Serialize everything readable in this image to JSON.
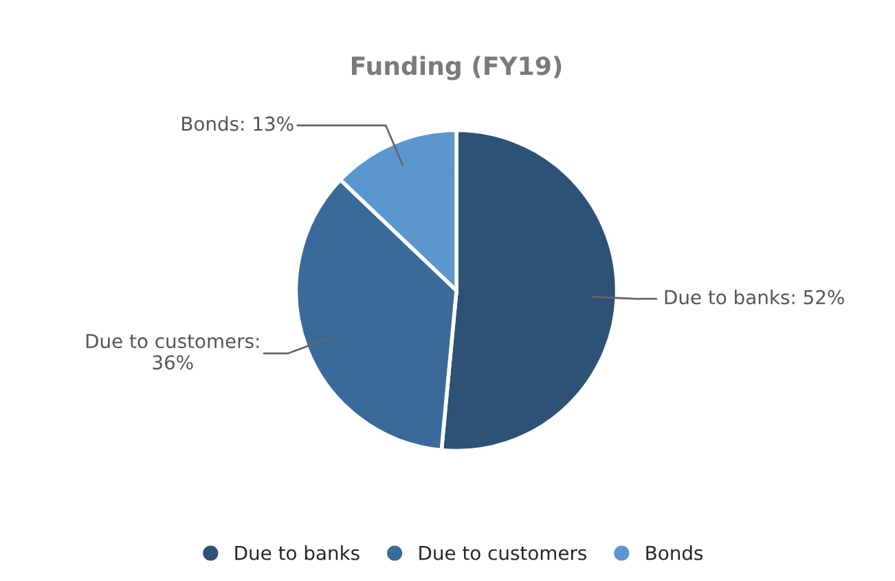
{
  "chart_data": {
    "type": "pie",
    "title": "Funding (FY19)",
    "categories": [
      "Due to banks",
      "Due to customers",
      "Bonds"
    ],
    "values": [
      52,
      36,
      13
    ],
    "colors": [
      "#2d5275",
      "#3a6a9a",
      "#5b97cf"
    ],
    "value_labels": [
      "Due to banks: 52%",
      "Due to customers:\n36%",
      "Bonds: 13%"
    ],
    "legend": "bottom"
  }
}
